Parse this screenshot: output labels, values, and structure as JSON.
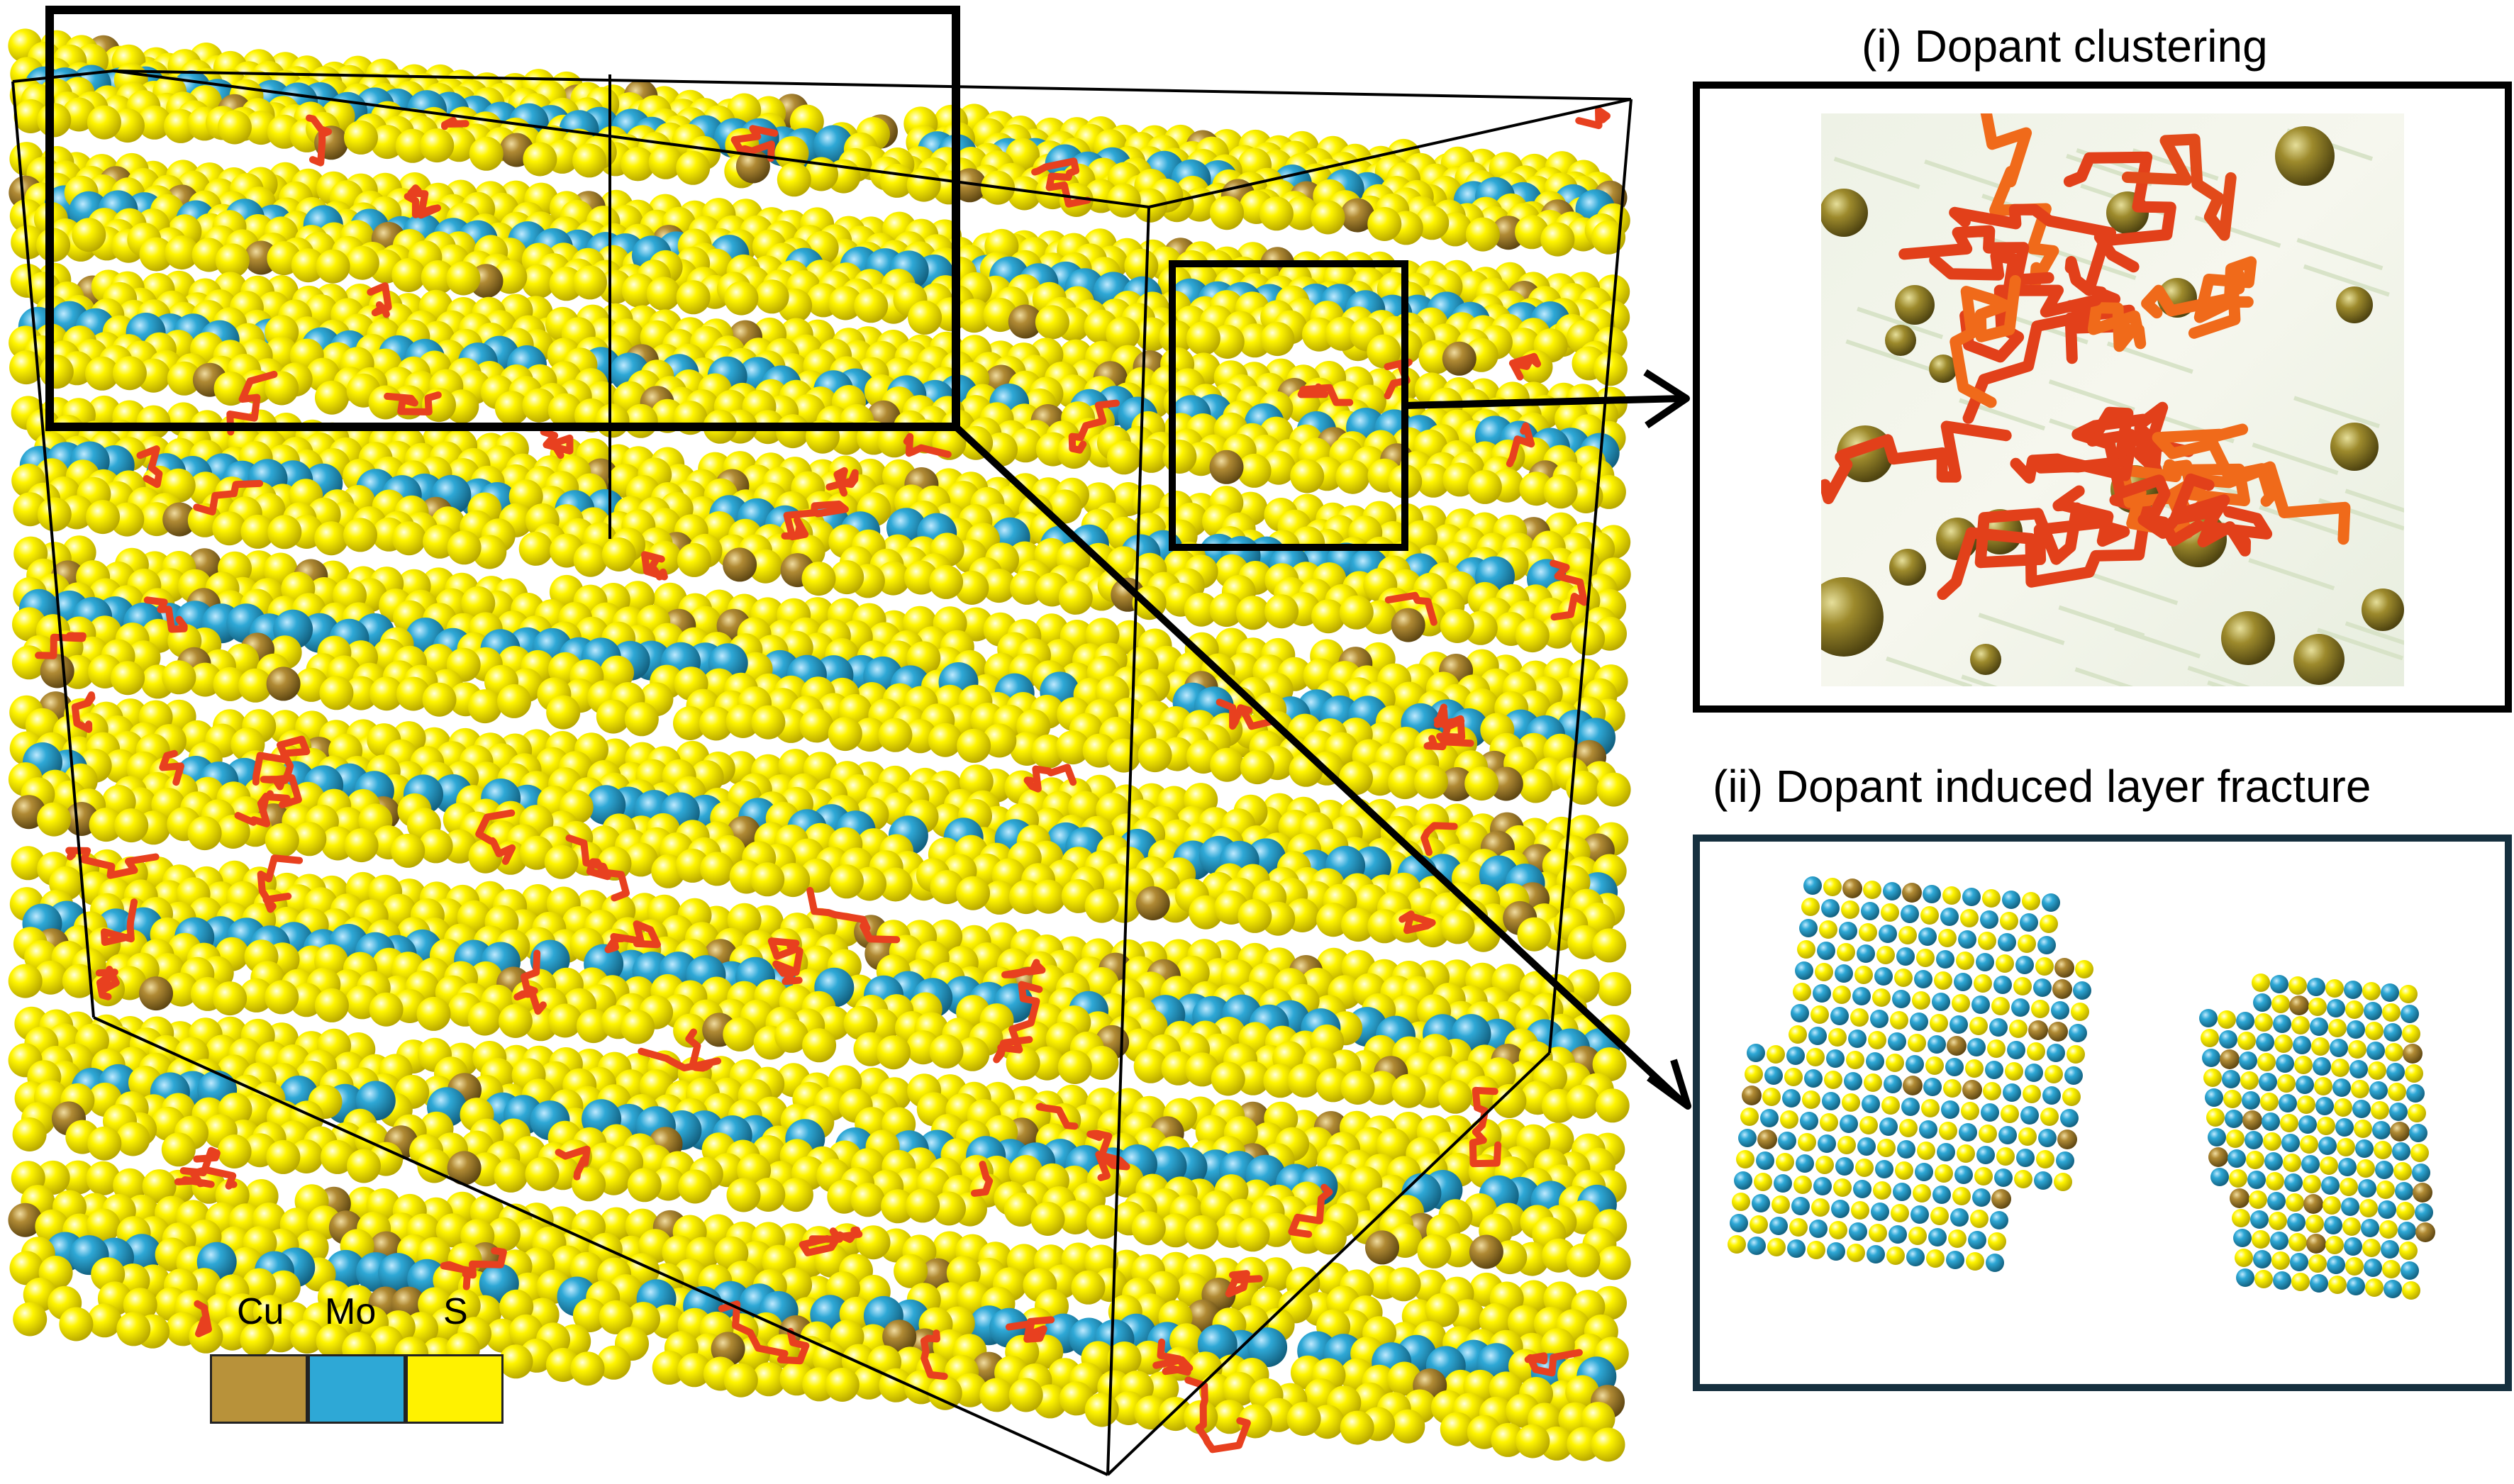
{
  "panels": {
    "clustering": {
      "label": "(i) Dopant clustering"
    },
    "fracture": {
      "label": "(ii) Dopant induced layer fracture"
    }
  },
  "legend": [
    {
      "label": "Cu",
      "color": "#b8923a"
    },
    {
      "label": "Mo",
      "color": "#2ea8d6"
    },
    {
      "label": "S",
      "color": "#fff200"
    }
  ],
  "colors": {
    "sulfur": "#f5e600",
    "molybdenum": "#2b9fcf",
    "copper": "#a8863a",
    "dopant_path": "#e8401f",
    "frame": "#000000",
    "fracture_border": "#16303f"
  }
}
